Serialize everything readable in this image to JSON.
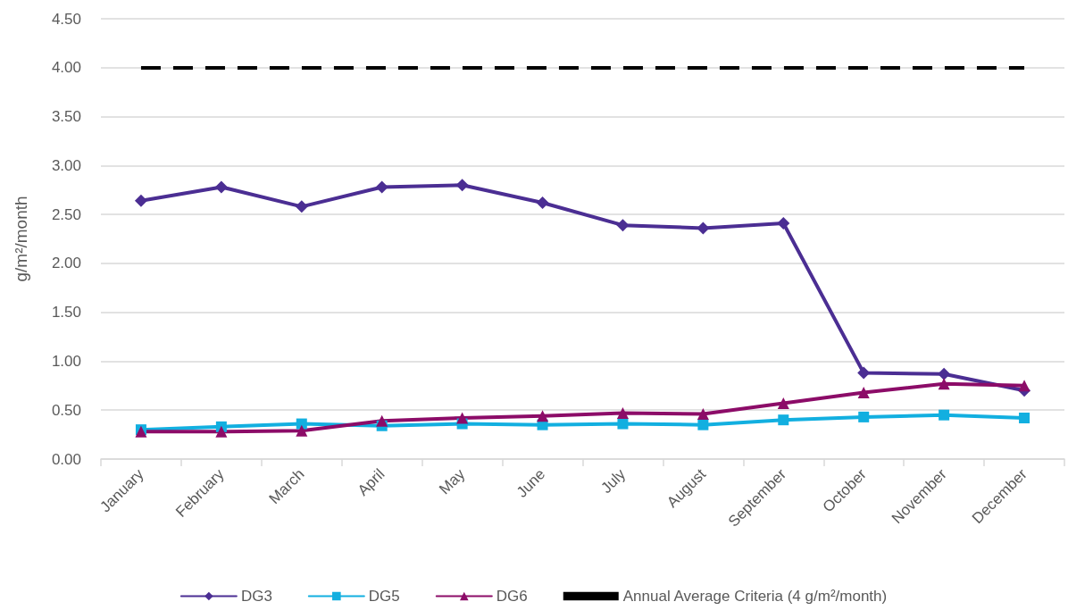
{
  "chart_data": {
    "type": "line",
    "ylabel": "g/m²/month",
    "categories": [
      "January",
      "February",
      "March",
      "April",
      "May",
      "June",
      "July",
      "August",
      "September",
      "October",
      "November",
      "December"
    ],
    "series": [
      {
        "name": "DG3",
        "color": "#4b2e93",
        "marker": "diamond",
        "values": [
          2.64,
          2.78,
          2.58,
          2.78,
          2.8,
          2.62,
          2.39,
          2.36,
          2.41,
          0.88,
          0.87,
          0.7
        ]
      },
      {
        "name": "DG5",
        "color": "#12afe0",
        "marker": "square",
        "values": [
          0.3,
          0.33,
          0.36,
          0.34,
          0.36,
          0.35,
          0.36,
          0.35,
          0.4,
          0.43,
          0.45,
          0.42
        ]
      },
      {
        "name": "DG6",
        "color": "#8c0c68",
        "marker": "triangle",
        "values": [
          0.28,
          0.28,
          0.29,
          0.39,
          0.42,
          0.44,
          0.47,
          0.46,
          0.57,
          0.68,
          0.77,
          0.75
        ]
      }
    ],
    "ref_lines": [
      {
        "axis": "y",
        "value": 4,
        "label": "Annual Average Criteria (4 g/m²/month)",
        "color": "#000000",
        "line_style": "dashed"
      }
    ],
    "ylim": [
      0,
      4.5
    ],
    "yticks": [
      {
        "value": 0,
        "label": "0.00"
      },
      {
        "value": 0.5,
        "label": "0.50"
      },
      {
        "value": 1,
        "label": "1.00"
      },
      {
        "value": 1.5,
        "label": "1.50"
      },
      {
        "value": 2,
        "label": "2.00"
      },
      {
        "value": 2.5,
        "label": "2.50"
      },
      {
        "value": 3,
        "label": "3.00"
      },
      {
        "value": 3.5,
        "label": "3.50"
      },
      {
        "value": 4,
        "label": "4.00"
      },
      {
        "value": 4.5,
        "label": "4.50"
      }
    ],
    "grid": "y",
    "legend": "bottom",
    "line_style": "solid"
  }
}
